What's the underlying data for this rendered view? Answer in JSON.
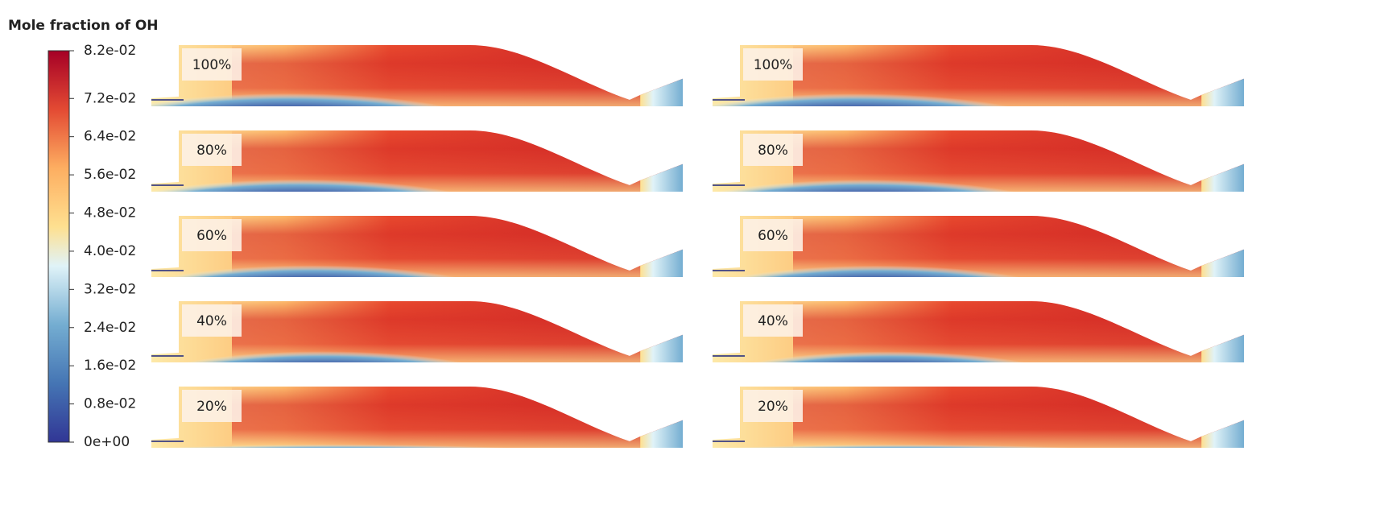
{
  "title": "Mole fraction of OH",
  "colorbar": {
    "lim": [
      0,
      0.082
    ],
    "ticks": [
      {
        "value": 0,
        "label": "0e+00"
      },
      {
        "value": 0.008,
        "label": "0.8e-02"
      },
      {
        "value": 0.016,
        "label": "1.6e-02"
      },
      {
        "value": 0.024,
        "label": "2.4e-02"
      },
      {
        "value": 0.032,
        "label": "3.2e-02"
      },
      {
        "value": 0.04,
        "label": "4.0e-02"
      },
      {
        "value": 0.048,
        "label": "4.8e-02"
      },
      {
        "value": 0.056,
        "label": "5.6e-02"
      },
      {
        "value": 0.064,
        "label": "6.4e-02"
      },
      {
        "value": 0.072,
        "label": "7.2e-02"
      },
      {
        "value": 0.082,
        "label": "8.2e-02"
      }
    ]
  },
  "panels": [
    [
      {
        "label": "100%"
      },
      {
        "label": "80%"
      },
      {
        "label": "60%"
      },
      {
        "label": "40%"
      },
      {
        "label": "20%"
      }
    ],
    [
      {
        "label": "100%"
      },
      {
        "label": "80%"
      },
      {
        "label": "60%"
      },
      {
        "label": "40%"
      },
      {
        "label": "20%"
      }
    ]
  ]
}
